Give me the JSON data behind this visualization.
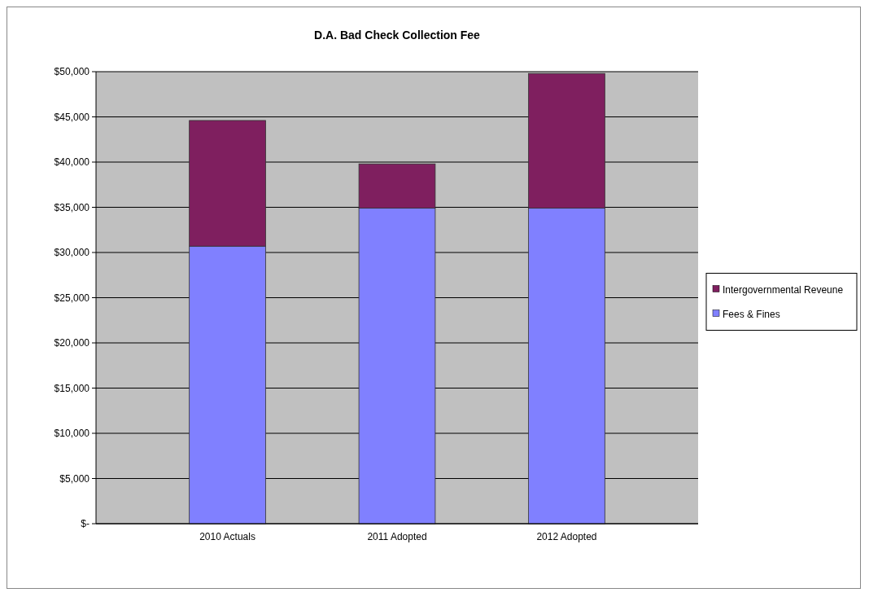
{
  "chart_data": {
    "type": "bar",
    "title": "D.A. Bad Check Collection Fee",
    "categories": [
      "2010 Actuals",
      "2011 Adopted",
      "2012 Adopted"
    ],
    "stacked": true,
    "series": [
      {
        "name": "Fees & Fines",
        "color": "#8080ff",
        "values": [
          30700,
          34900,
          34900
        ]
      },
      {
        "name": "Intergovernmental Reveune",
        "color": "#7f1f5f",
        "values": [
          13900,
          4900,
          14900
        ]
      }
    ],
    "ylim": [
      0,
      50000
    ],
    "yticks": [
      {
        "value": 0,
        "label": "$-"
      },
      {
        "value": 5000,
        "label": "$5,000"
      },
      {
        "value": 10000,
        "label": "$10,000"
      },
      {
        "value": 15000,
        "label": "$15,000"
      },
      {
        "value": 20000,
        "label": "$20,000"
      },
      {
        "value": 25000,
        "label": "$25,000"
      },
      {
        "value": 30000,
        "label": "$30,000"
      },
      {
        "value": 35000,
        "label": "$35,000"
      },
      {
        "value": 40000,
        "label": "$40,000"
      },
      {
        "value": 45000,
        "label": "$45,000"
      },
      {
        "value": 50000,
        "label": "$50,000"
      }
    ],
    "grid": "y",
    "legend": "right"
  }
}
